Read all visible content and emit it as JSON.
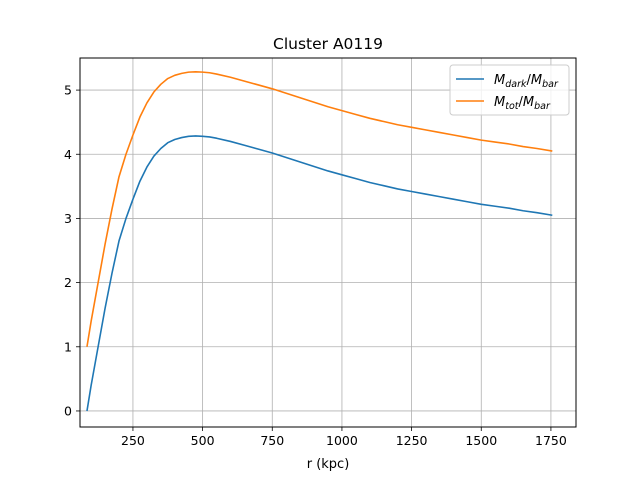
{
  "chart_data": {
    "type": "line",
    "title": "Cluster A0119",
    "xlabel": "r (kpc)",
    "ylabel": "",
    "xlim": [
      60,
      1840
    ],
    "ylim": [
      -0.25,
      5.5
    ],
    "xticks": [
      250,
      500,
      750,
      1000,
      1250,
      1500,
      1750
    ],
    "xtick_labels": [
      "250",
      "500",
      "750",
      "1000",
      "1250",
      "1500",
      "1750"
    ],
    "yticks": [
      0,
      1,
      2,
      3,
      4,
      5
    ],
    "ytick_labels": [
      "0",
      "1",
      "2",
      "3",
      "4",
      "5"
    ],
    "grid": true,
    "legend_position": "top-right",
    "x": [
      85,
      100,
      125,
      150,
      175,
      200,
      225,
      250,
      275,
      300,
      325,
      350,
      375,
      400,
      425,
      450,
      475,
      500,
      525,
      550,
      600,
      650,
      700,
      750,
      800,
      850,
      900,
      950,
      1000,
      1050,
      1100,
      1150,
      1200,
      1250,
      1300,
      1350,
      1400,
      1450,
      1500,
      1550,
      1600,
      1650,
      1700,
      1755
    ],
    "series": [
      {
        "name": "M_dark/M_bar",
        "legend": {
          "main1": "M",
          "sub1": "dark",
          "slash": "/",
          "main2": "M",
          "sub2": "bar"
        },
        "color": "#1f77b4",
        "values": [
          0.0,
          0.4,
          1.0,
          1.6,
          2.15,
          2.65,
          3.0,
          3.3,
          3.58,
          3.8,
          3.97,
          4.09,
          4.18,
          4.23,
          4.26,
          4.28,
          4.285,
          4.28,
          4.27,
          4.25,
          4.2,
          4.14,
          4.08,
          4.02,
          3.95,
          3.88,
          3.81,
          3.74,
          3.68,
          3.62,
          3.56,
          3.51,
          3.46,
          3.42,
          3.38,
          3.34,
          3.3,
          3.26,
          3.22,
          3.19,
          3.16,
          3.12,
          3.09,
          3.05
        ]
      },
      {
        "name": "M_tot/M_bar",
        "legend": {
          "main1": "M",
          "sub1": "tot",
          "slash": "/",
          "main2": "M",
          "sub2": "bar"
        },
        "color": "#ff7f0e",
        "values": [
          1.0,
          1.4,
          2.0,
          2.6,
          3.15,
          3.65,
          4.0,
          4.3,
          4.58,
          4.8,
          4.97,
          5.09,
          5.18,
          5.23,
          5.26,
          5.28,
          5.285,
          5.28,
          5.27,
          5.25,
          5.2,
          5.14,
          5.08,
          5.02,
          4.95,
          4.88,
          4.81,
          4.74,
          4.68,
          4.62,
          4.56,
          4.51,
          4.46,
          4.42,
          4.38,
          4.34,
          4.3,
          4.26,
          4.22,
          4.19,
          4.16,
          4.12,
          4.09,
          4.05
        ]
      }
    ]
  }
}
